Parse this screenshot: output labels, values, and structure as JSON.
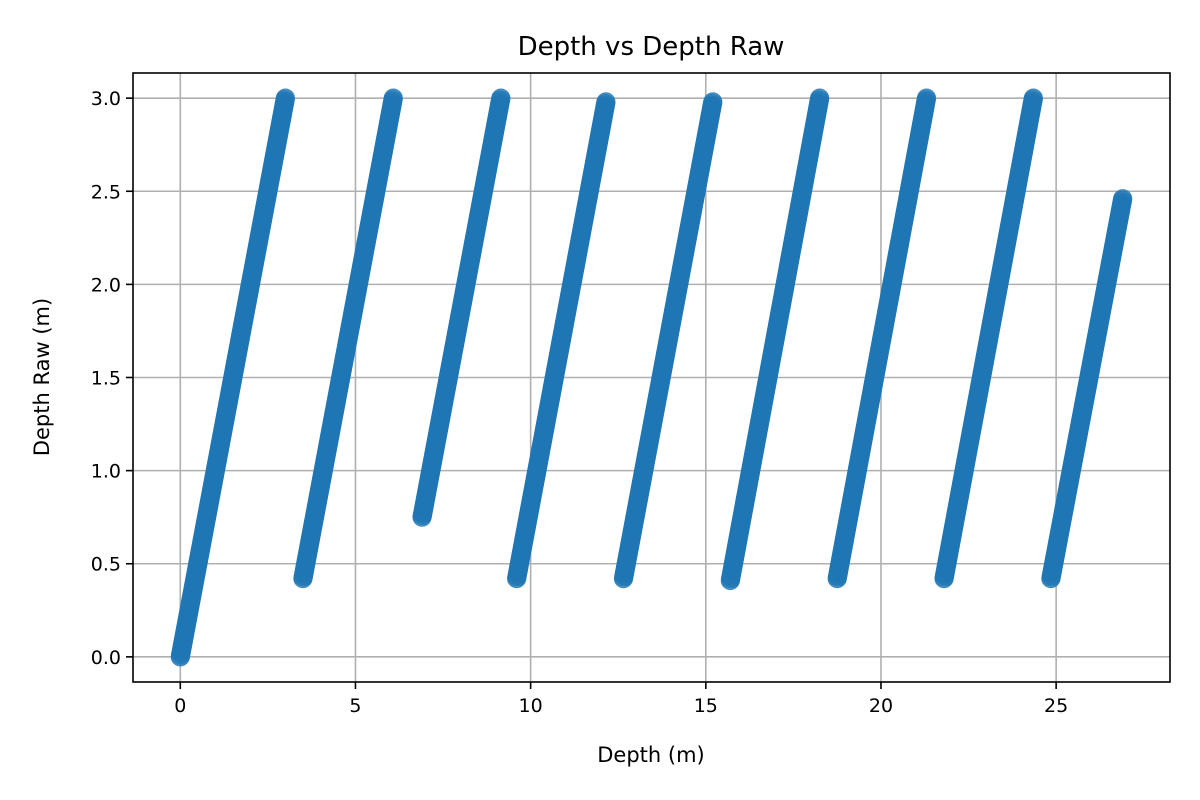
{
  "chart_data": {
    "type": "scatter",
    "title": "Depth vs Depth Raw",
    "xlabel": "Depth (m)",
    "ylabel": "Depth Raw (m)",
    "xlim": [
      -1.35,
      28.25
    ],
    "ylim": [
      -0.135,
      3.135
    ],
    "xticks": [
      0,
      5,
      10,
      15,
      20,
      25
    ],
    "yticks": [
      0.0,
      0.5,
      1.0,
      1.5,
      2.0,
      2.5,
      3.0
    ],
    "xtick_labels": [
      "0",
      "5",
      "10",
      "15",
      "20",
      "25"
    ],
    "ytick_labels": [
      "0.0",
      "0.5",
      "1.0",
      "1.5",
      "2.0",
      "2.5",
      "3.0"
    ],
    "grid": true,
    "marker_color": "#1f77b4",
    "series": [
      {
        "segments": [
          {
            "x_start": 0.0,
            "y_start": 0.0,
            "x_end": 3.0,
            "y_end": 3.0
          },
          {
            "x_start": 3.5,
            "y_start": 0.42,
            "x_end": 6.08,
            "y_end": 3.0
          },
          {
            "x_start": 6.9,
            "y_start": 0.75,
            "x_end": 9.15,
            "y_end": 3.0
          },
          {
            "x_start": 9.6,
            "y_start": 0.42,
            "x_end": 12.15,
            "y_end": 2.98
          },
          {
            "x_start": 12.65,
            "y_start": 0.42,
            "x_end": 15.2,
            "y_end": 2.98
          },
          {
            "x_start": 15.7,
            "y_start": 0.41,
            "x_end": 18.25,
            "y_end": 3.0
          },
          {
            "x_start": 18.75,
            "y_start": 0.42,
            "x_end": 21.3,
            "y_end": 3.0
          },
          {
            "x_start": 21.8,
            "y_start": 0.42,
            "x_end": 24.35,
            "y_end": 3.0
          },
          {
            "x_start": 24.85,
            "y_start": 0.42,
            "x_end": 26.9,
            "y_end": 2.46
          }
        ]
      }
    ]
  }
}
